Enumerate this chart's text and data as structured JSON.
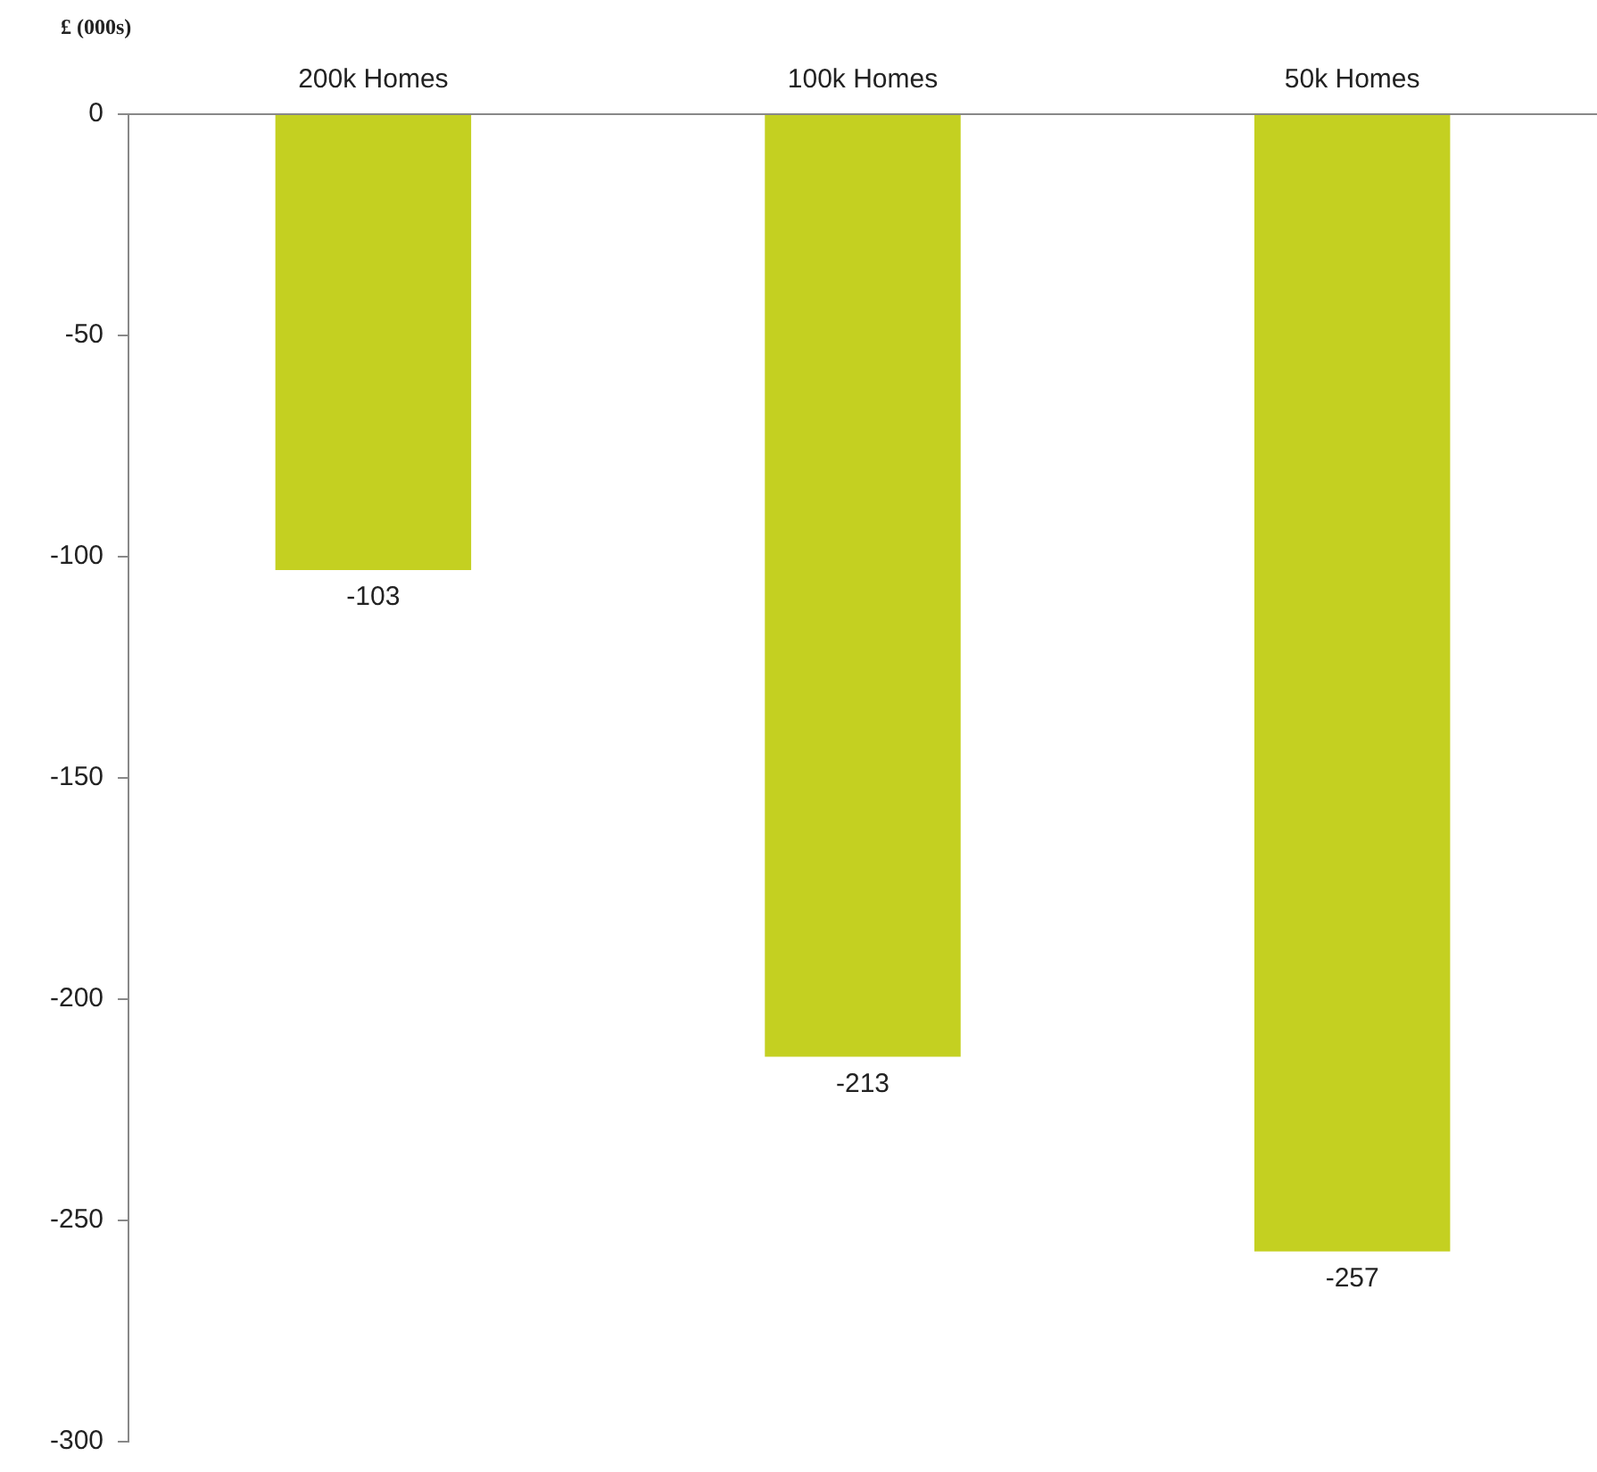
{
  "chart_data": {
    "type": "bar",
    "ylabel": "£ (000s)",
    "categories": [
      "200k Homes",
      "100k Homes",
      "50k Homes"
    ],
    "values": [
      -103,
      -213,
      -257
    ],
    "color": "#c4d021",
    "ylim": [
      -300,
      0
    ],
    "yticks": [
      -300,
      -250,
      -200,
      -150,
      -100,
      -50,
      0
    ],
    "grid": false,
    "legend": false,
    "data_labels": true
  }
}
